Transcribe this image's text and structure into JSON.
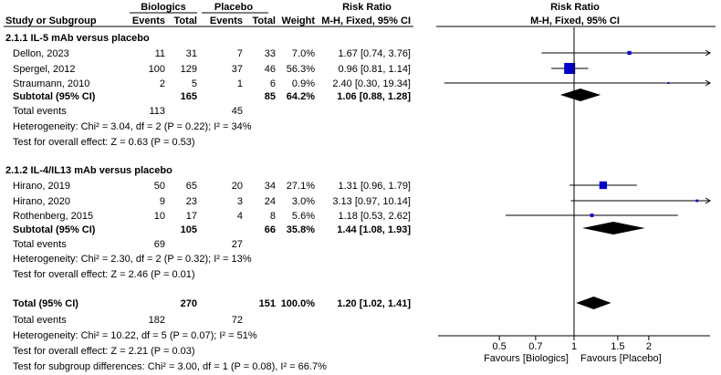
{
  "header": {
    "group1_label": "Biologics",
    "group2_label": "Placebo",
    "risk_ratio_label": "Risk Ratio",
    "plot_title": "Risk Ratio",
    "col_study": "Study or Subgroup",
    "col_events1": "Events",
    "col_total1": "Total",
    "col_events2": "Events",
    "col_total2": "Total",
    "col_weight": "Weight",
    "col_method": "M-H, Fixed, 95% CI",
    "plot_method": "M-H, Fixed, 95% CI"
  },
  "chart_data": {
    "type": "forest",
    "x_scale": "log",
    "xlim": [
      0.3,
      5
    ],
    "x_ticks": [
      0.5,
      0.7,
      1,
      1.5,
      2
    ],
    "x_tick_labels": [
      "0.5",
      "0.7",
      "1",
      "1.5",
      "2"
    ],
    "favours_left": "Favours [Biologics]",
    "favours_right": "Favours [Placebo]",
    "subgroups": [
      {
        "title": "2.1.1 IL-5 mAb versus placebo",
        "studies": [
          {
            "name": "Dellon, 2023",
            "e1": "11",
            "n1": "31",
            "e2": "7",
            "n2": "33",
            "weight": "7.0%",
            "ci_text": "1.67 [0.74, 3.76]",
            "rr": 1.67,
            "lo": 0.74,
            "hi": 3.76
          },
          {
            "name": "Spergel, 2012",
            "e1": "100",
            "n1": "129",
            "e2": "37",
            "n2": "46",
            "weight": "56.3%",
            "ci_text": "0.96 [0.81, 1.14]",
            "rr": 0.96,
            "lo": 0.81,
            "hi": 1.14
          },
          {
            "name": "Straumann, 2010",
            "e1": "2",
            "n1": "5",
            "e2": "1",
            "n2": "6",
            "weight": "0.9%",
            "ci_text": "2.40 [0.30, 19.34]",
            "rr": 2.4,
            "lo": 0.3,
            "hi": 19.34
          }
        ],
        "subtotal": {
          "label": "Subtotal (95% CI)",
          "n1": "165",
          "n2": "85",
          "weight": "64.2%",
          "ci_text": "1.06 [0.88, 1.28]",
          "rr": 1.06,
          "lo": 0.88,
          "hi": 1.28
        },
        "total_events": {
          "label": "Total events",
          "e1": "113",
          "e2": "45"
        },
        "heterogeneity": "Heterogeneity: Chi² = 3.04, df = 2 (P = 0.22); I² = 34%",
        "overall_effect": "Test for overall effect: Z = 0.63 (P = 0.53)"
      },
      {
        "title": "2.1.2 IL-4/IL13 mAb versus placebo",
        "studies": [
          {
            "name": "Hirano, 2019",
            "e1": "50",
            "n1": "65",
            "e2": "20",
            "n2": "34",
            "weight": "27.1%",
            "ci_text": "1.31 [0.96, 1.79]",
            "rr": 1.31,
            "lo": 0.96,
            "hi": 1.79
          },
          {
            "name": "Hirano, 2020",
            "e1": "9",
            "n1": "23",
            "e2": "3",
            "n2": "24",
            "weight": "3.0%",
            "ci_text": "3.13 [0.97, 10.14]",
            "rr": 3.13,
            "lo": 0.97,
            "hi": 10.14
          },
          {
            "name": "Rothenberg, 2015",
            "e1": "10",
            "n1": "17",
            "e2": "4",
            "n2": "8",
            "weight": "5.6%",
            "ci_text": "1.18 [0.53, 2.62]",
            "rr": 1.18,
            "lo": 0.53,
            "hi": 2.62
          }
        ],
        "subtotal": {
          "label": "Subtotal (95% CI)",
          "n1": "105",
          "n2": "66",
          "weight": "35.8%",
          "ci_text": "1.44 [1.08, 1.93]",
          "rr": 1.44,
          "lo": 1.08,
          "hi": 1.93
        },
        "total_events": {
          "label": "Total events",
          "e1": "69",
          "e2": "27"
        },
        "heterogeneity": "Heterogeneity: Chi² = 2.30, df = 2 (P = 0.32); I² = 13%",
        "overall_effect": "Test for overall effect: Z = 2.46 (P = 0.01)"
      }
    ],
    "total": {
      "label": "Total (95% CI)",
      "n1": "270",
      "n2": "151",
      "weight": "100.0%",
      "ci_text": "1.20 [1.02, 1.41]",
      "rr": 1.2,
      "lo": 1.02,
      "hi": 1.41
    },
    "total_events": {
      "label": "Total events",
      "e1": "182",
      "e2": "72"
    },
    "heterogeneity": "Heterogeneity: Chi² = 10.22, df = 5 (P = 0.07); I² = 51%",
    "overall_effect": "Test for overall effect: Z = 2.21 (P = 0.03)",
    "subgroup_differences": "Test for subgroup differences: Chi² = 3.00, df = 1 (P = 0.08), I² = 66.7%"
  },
  "colors": {
    "marker": "#0000cc",
    "diamond": "#000000",
    "line": "#000000"
  }
}
